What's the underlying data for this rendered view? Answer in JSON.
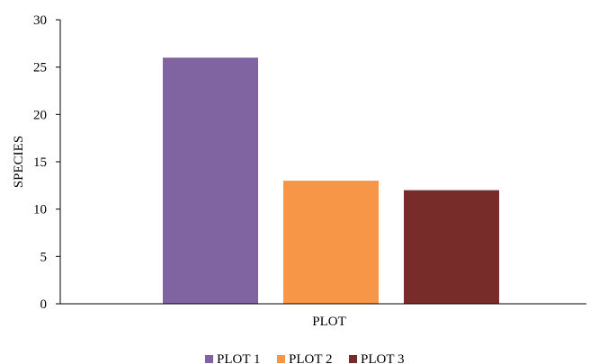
{
  "chart_data": {
    "type": "bar",
    "title": "",
    "xlabel": "PLOT",
    "ylabel": "SPECIES",
    "ylim": [
      0,
      30
    ],
    "yticks": [
      0,
      5,
      10,
      15,
      20,
      25,
      30
    ],
    "grid": false,
    "legend_position": "bottom",
    "series": [
      {
        "name": "PLOT 1",
        "value": 26,
        "color": "#8064A2"
      },
      {
        "name": "PLOT 2",
        "value": 13,
        "color": "#F79646"
      },
      {
        "name": "PLOT 3",
        "value": 12,
        "color": "#772C2A"
      }
    ]
  }
}
